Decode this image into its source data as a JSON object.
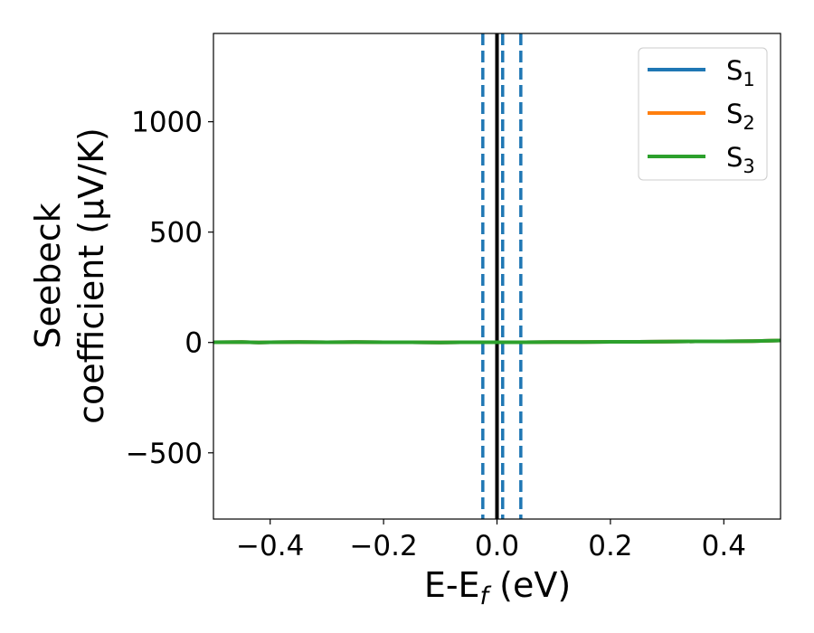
{
  "chart_data": {
    "type": "line",
    "xlabel": "E-E",
    "xlabel_sub": "f",
    "xlabel_unit": " (eV)",
    "ylabel_line1": "Seebeck",
    "ylabel_line2": "coefficient  (μV/K)",
    "xlim": [
      -0.5,
      0.5
    ],
    "ylim": [
      -800,
      1400
    ],
    "x_ticks": [
      -0.4,
      -0.2,
      0.0,
      0.2,
      0.4
    ],
    "x_tick_labels": [
      "−0.4",
      "−0.2",
      "0.0",
      "0.2",
      "0.4"
    ],
    "y_ticks": [
      -500,
      0,
      500,
      1000
    ],
    "y_tick_labels": [
      "−500",
      "0",
      "500",
      "1000"
    ],
    "grid": false,
    "legend_position": "top-right",
    "series": [
      {
        "name": "S",
        "sub": "1",
        "color": "#1f77b4",
        "x": [
          -0.5,
          -0.45,
          -0.42,
          -0.4,
          -0.35,
          -0.3,
          -0.25,
          -0.2,
          -0.15,
          -0.1,
          -0.05,
          0.0,
          0.05,
          0.1,
          0.15,
          0.2,
          0.25,
          0.3,
          0.35,
          0.4,
          0.45,
          0.5
        ],
        "y": [
          1,
          2,
          0,
          1,
          2,
          1,
          2,
          1,
          1,
          0,
          1,
          1,
          1,
          2,
          2,
          3,
          3,
          4,
          5,
          5,
          6,
          9
        ]
      },
      {
        "name": "S",
        "sub": "2",
        "color": "#ff7f0e",
        "x": [
          -0.5,
          -0.45,
          -0.42,
          -0.4,
          -0.35,
          -0.3,
          -0.25,
          -0.2,
          -0.15,
          -0.1,
          -0.05,
          0.0,
          0.05,
          0.1,
          0.15,
          0.2,
          0.25,
          0.3,
          0.35,
          0.4,
          0.45,
          0.5
        ],
        "y": [
          1,
          2,
          0,
          1,
          2,
          1,
          2,
          1,
          1,
          0,
          1,
          1,
          1,
          2,
          2,
          3,
          3,
          4,
          5,
          5,
          6,
          9
        ]
      },
      {
        "name": "S",
        "sub": "3",
        "color": "#2ca02c",
        "x": [
          -0.5,
          -0.45,
          -0.42,
          -0.4,
          -0.35,
          -0.3,
          -0.25,
          -0.2,
          -0.15,
          -0.1,
          -0.05,
          0.0,
          0.05,
          0.1,
          0.15,
          0.2,
          0.25,
          0.3,
          0.35,
          0.4,
          0.45,
          0.5
        ],
        "y": [
          1,
          2,
          0,
          1,
          2,
          1,
          2,
          1,
          1,
          0,
          1,
          1,
          1,
          2,
          2,
          3,
          3,
          4,
          5,
          5,
          6,
          9
        ]
      }
    ],
    "vlines": [
      {
        "x": 0.0,
        "color": "#000000",
        "style": "solid"
      },
      {
        "x": -0.025,
        "color": "#1f77b4",
        "style": "dashed"
      },
      {
        "x": 0.01,
        "color": "#1f77b4",
        "style": "dashed"
      },
      {
        "x": 0.042,
        "color": "#1f77b4",
        "style": "dashed"
      }
    ]
  }
}
